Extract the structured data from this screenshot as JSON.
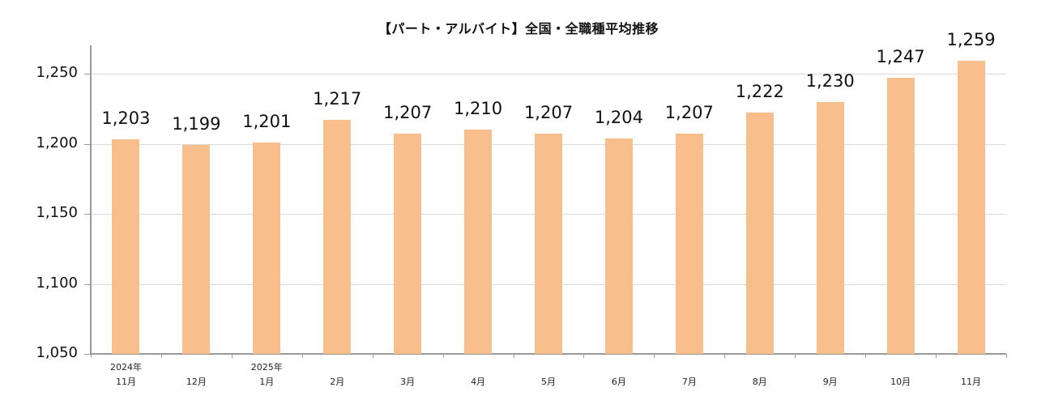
{
  "chart_data": {
    "type": "bar",
    "title": "【パート・アルバイト】全国・全職種平均推移",
    "xlabel": "",
    "ylabel": "",
    "categories": [
      "2024年 11月",
      "12月",
      "2025年 1月",
      "2月",
      "3月",
      "4月",
      "5月",
      "6月",
      "7月",
      "8月",
      "9月",
      "10月",
      "11月"
    ],
    "category_labels": [
      {
        "year": "2024年",
        "month": "11月"
      },
      {
        "year": "",
        "month": "12月"
      },
      {
        "year": "2025年",
        "month": "1月"
      },
      {
        "year": "",
        "month": "2月"
      },
      {
        "year": "",
        "month": "3月"
      },
      {
        "year": "",
        "month": "4月"
      },
      {
        "year": "",
        "month": "5月"
      },
      {
        "year": "",
        "month": "6月"
      },
      {
        "year": "",
        "month": "7月"
      },
      {
        "year": "",
        "month": "8月"
      },
      {
        "year": "",
        "month": "9月"
      },
      {
        "year": "",
        "month": "10月"
      },
      {
        "year": "",
        "month": "11月"
      }
    ],
    "values": [
      1203,
      1199,
      1201,
      1217,
      1207,
      1210,
      1207,
      1204,
      1207,
      1222,
      1230,
      1247,
      1259
    ],
    "value_labels": [
      "1,203",
      "1,199",
      "1,201",
      "1,217",
      "1,207",
      "1,210",
      "1,207",
      "1,204",
      "1,207",
      "1,222",
      "1,230",
      "1,247",
      "1,259"
    ],
    "ylim": [
      1050,
      1270
    ],
    "yticks": [
      1050,
      1100,
      1150,
      1200,
      1250
    ],
    "ytick_labels": [
      "1,050",
      "1,100",
      "1,150",
      "1,200",
      "1,250"
    ],
    "grid": true,
    "legend": null,
    "bar_color": "#F8BE8C"
  }
}
